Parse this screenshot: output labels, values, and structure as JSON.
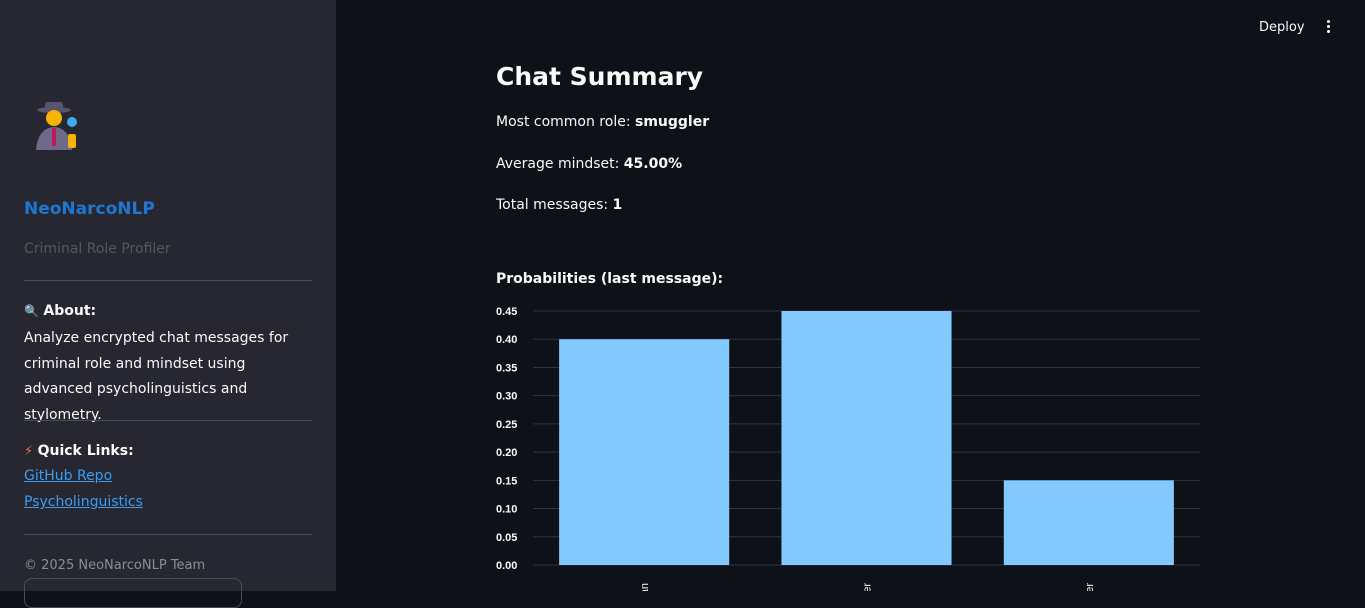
{
  "sidebar": {
    "logo_icon": "detective-emoji",
    "brand": "NeoNarcoNLP",
    "subtitle": "Criminal Role Profiler",
    "about_icon": "magnifier-icon",
    "about_heading": "About:",
    "about_text": "Analyze encrypted chat messages for criminal role and mindset using advanced psycholinguistics and stylometry.",
    "links_icon": "lightning-icon",
    "links_heading": "Quick Links:",
    "links": [
      "GitHub Repo",
      "Psycholinguistics"
    ],
    "footer": "© 2025 NeoNarcoNLP Team"
  },
  "header": {
    "deploy_label": "Deploy",
    "menu_icon": "kebab-menu-icon"
  },
  "main": {
    "title": "Chat Summary",
    "role_label": "Most common role: ",
    "role_value": "smuggler",
    "mindset_label": "Average mindset: ",
    "mindset_value": "45.00%",
    "messages_label": "Total messages: ",
    "messages_value": "1",
    "chart_title": "Probabilities (last message):"
  },
  "chart_data": {
    "type": "bar",
    "categories": [
      "an",
      "er",
      "er"
    ],
    "values": [
      0.4,
      0.45,
      0.15
    ],
    "yticks": [
      "0.00",
      "0.05",
      "0.10",
      "0.15",
      "0.20",
      "0.25",
      "0.30",
      "0.35",
      "0.40",
      "0.45"
    ],
    "ylim": [
      0,
      0.45
    ],
    "grid": true,
    "bar_color": "#83c9ff"
  }
}
